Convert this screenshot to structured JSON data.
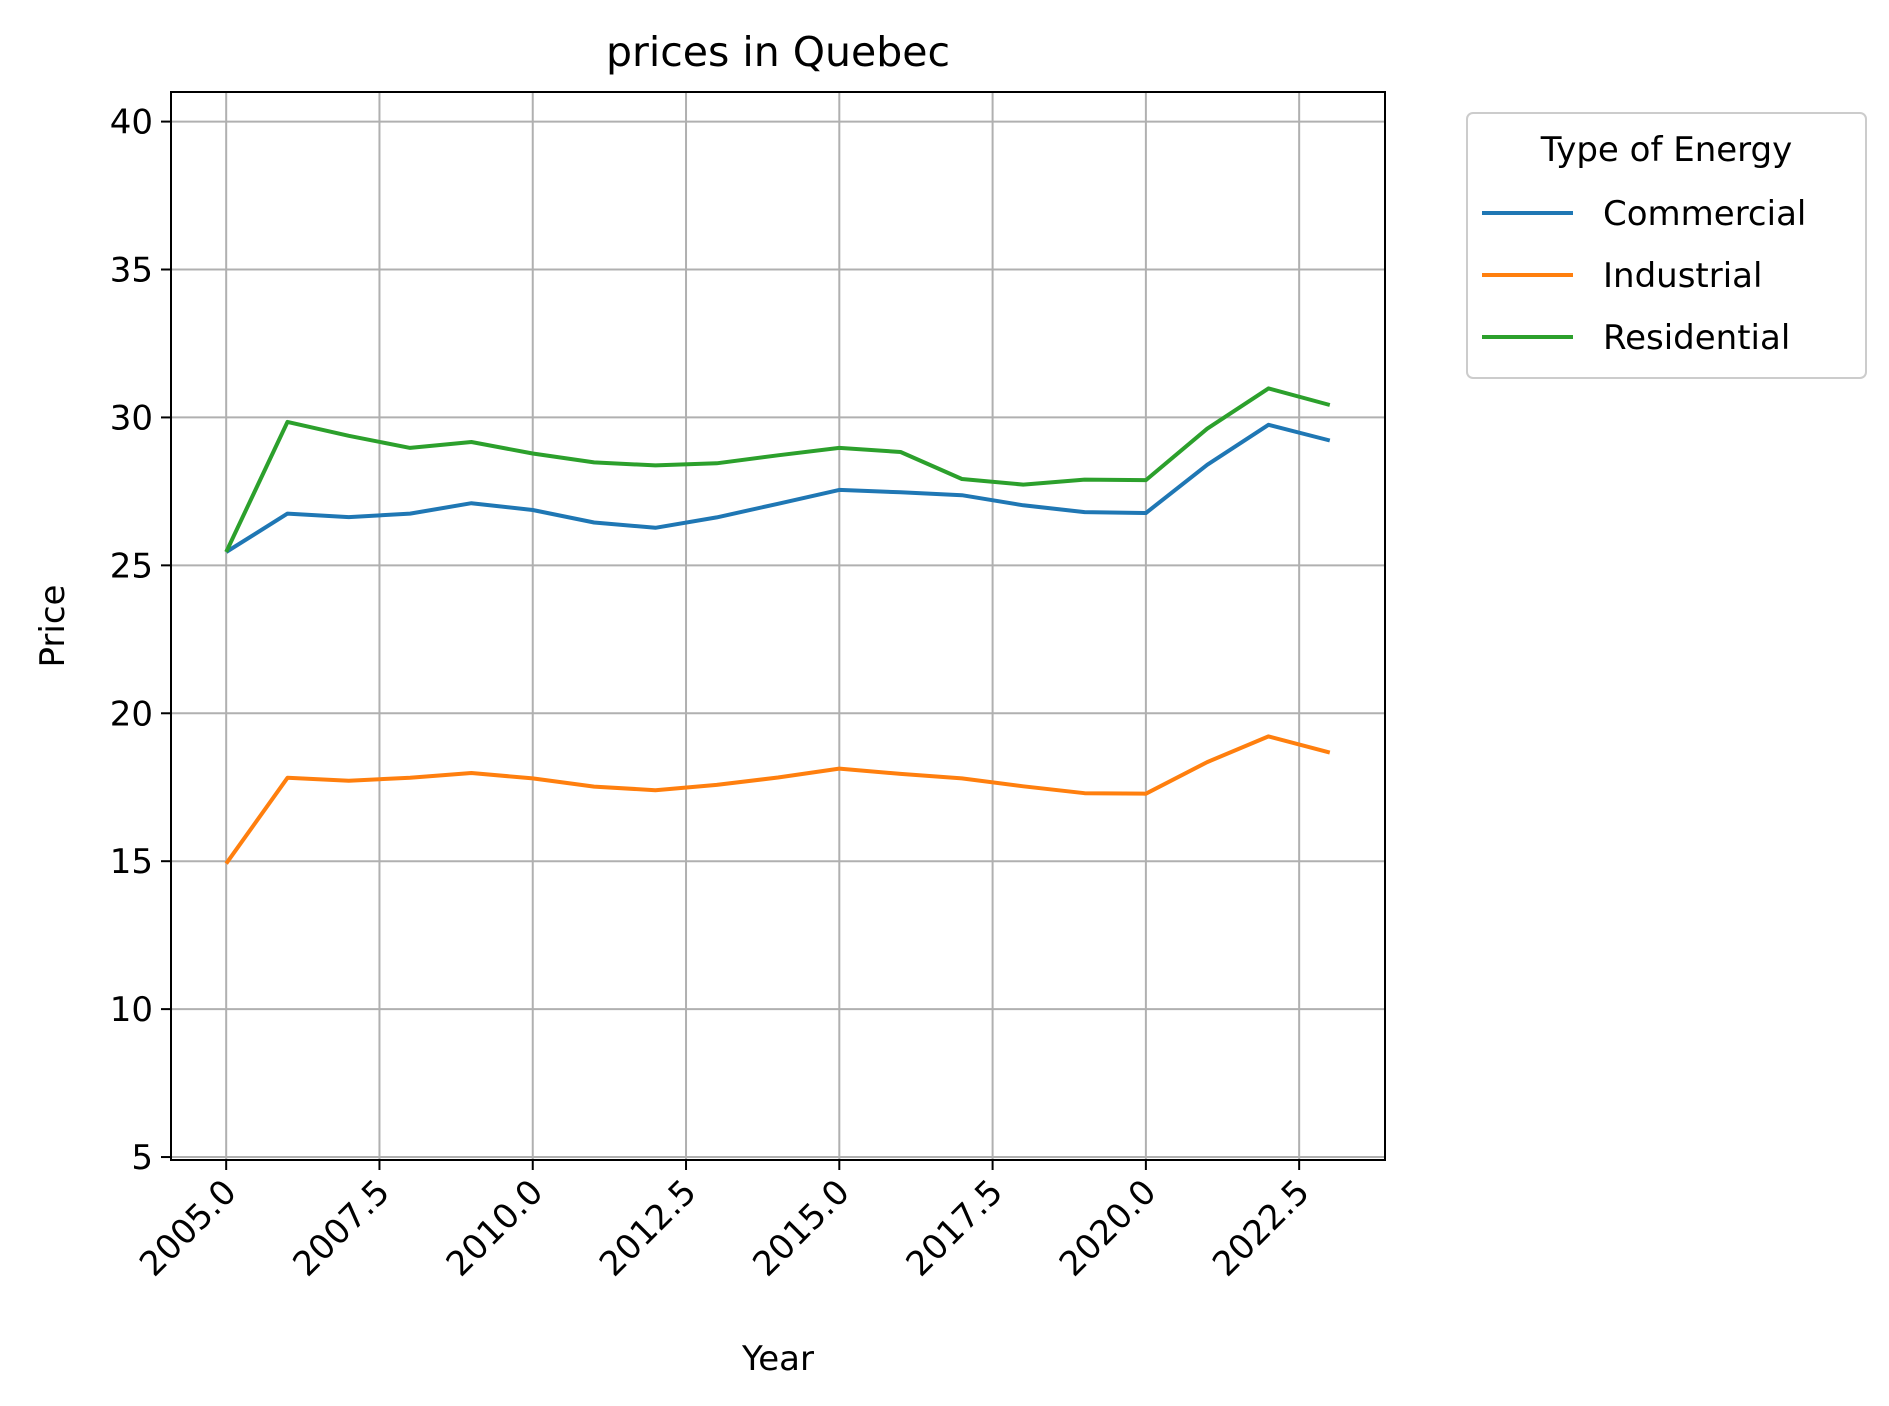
{
  "chart_data": {
    "type": "line",
    "title": "prices in Quebec",
    "xlabel": "Year",
    "ylabel": "Price",
    "xlim": [
      2004.1,
      2023.9
    ],
    "ylim": [
      4.9,
      41.0
    ],
    "x_ticks": [
      "2005.0",
      "2007.5",
      "2010.0",
      "2012.5",
      "2015.0",
      "2017.5",
      "2020.0",
      "2022.5"
    ],
    "x_tick_values": [
      2005.0,
      2007.5,
      2010.0,
      2012.5,
      2015.0,
      2017.5,
      2020.0,
      2022.5
    ],
    "y_ticks": [
      "5",
      "10",
      "15",
      "20",
      "25",
      "30",
      "35",
      "40"
    ],
    "y_tick_values": [
      5,
      10,
      15,
      20,
      25,
      30,
      35,
      40
    ],
    "grid": true,
    "legend": {
      "title": "Type of Energy",
      "placement": "outside top-right"
    },
    "x": [
      2005,
      2006,
      2007,
      2008,
      2009,
      2010,
      2011,
      2012,
      2013,
      2014,
      2015,
      2016,
      2017,
      2018,
      2019,
      2020,
      2021,
      2022,
      2023
    ],
    "series": [
      {
        "name": "Commercial",
        "color": "#1f77b4",
        "values": [
          25.45,
          26.75,
          26.63,
          26.75,
          27.1,
          26.87,
          26.45,
          26.27,
          26.62,
          27.08,
          27.55,
          27.47,
          27.37,
          27.03,
          26.8,
          26.77,
          28.4,
          29.75,
          29.22
        ]
      },
      {
        "name": "Industrial",
        "color": "#ff7f0e",
        "values": [
          14.92,
          17.82,
          17.72,
          17.82,
          17.98,
          17.8,
          17.52,
          17.4,
          17.58,
          17.83,
          18.13,
          17.95,
          17.8,
          17.53,
          17.3,
          17.28,
          18.35,
          19.22,
          18.67
        ]
      },
      {
        "name": "Residential",
        "color": "#2ca02c",
        "values": [
          25.45,
          29.85,
          29.38,
          28.97,
          29.17,
          28.78,
          28.48,
          28.38,
          28.45,
          28.72,
          28.97,
          28.83,
          27.92,
          27.73,
          27.9,
          27.88,
          29.62,
          30.98,
          30.42
        ]
      }
    ]
  }
}
